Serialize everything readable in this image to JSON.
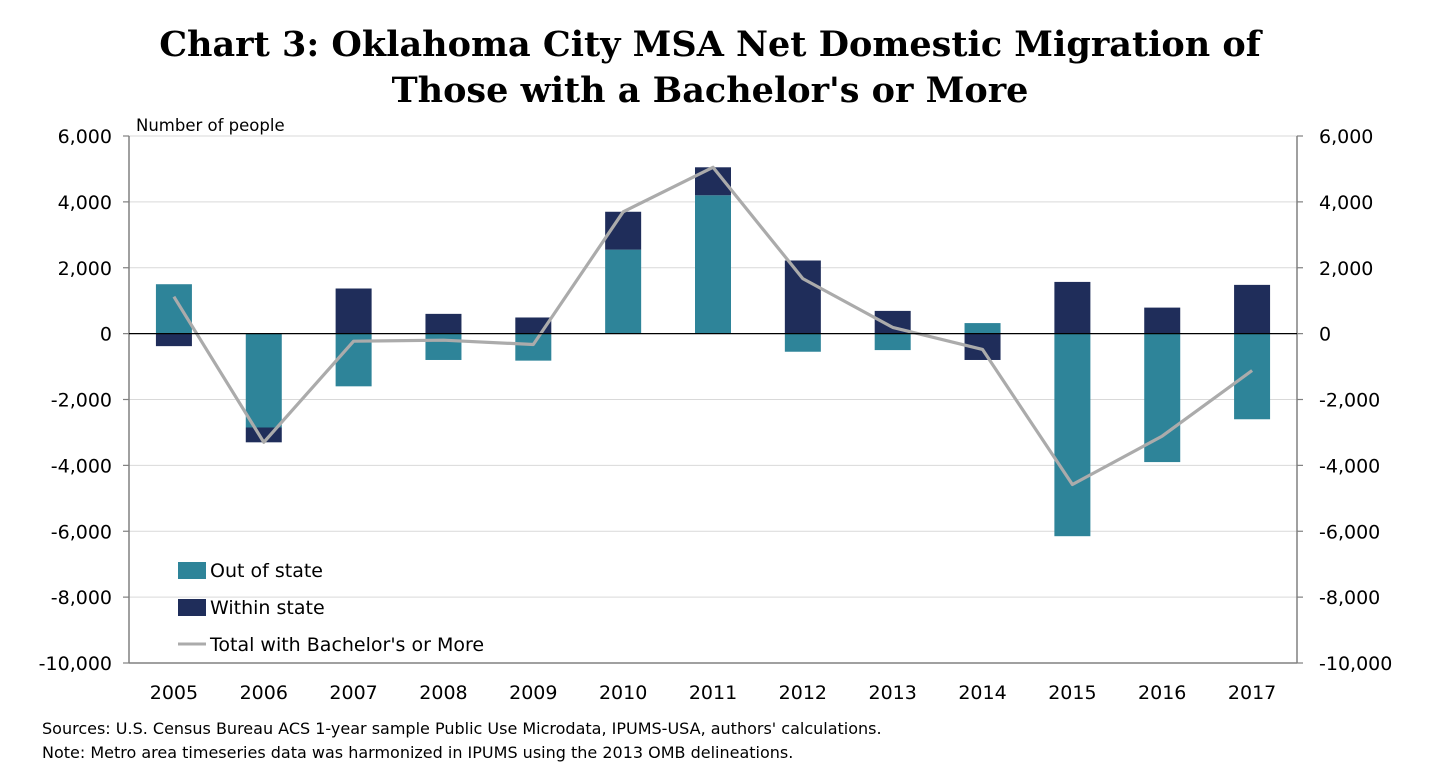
{
  "colors": {
    "out_of_state": "#2e8499",
    "within_state": "#1f2d5a",
    "total_line": "#ababab",
    "grid": "#d9d9d9",
    "axis": "#808080"
  },
  "chart_data": {
    "type": "bar",
    "stacked": true,
    "title_line1": "Chart 3: Oklahoma City MSA Net Domestic Migration of",
    "title_line2": "Those with a Bachelor's or More",
    "ylabel": "Number of people",
    "xlabel": "",
    "ylim": [
      -10000,
      6000
    ],
    "y_ticks": [
      6000,
      4000,
      2000,
      0,
      -2000,
      -4000,
      -6000,
      -8000,
      -10000
    ],
    "y_tick_labels": [
      "6,000",
      "4,000",
      "2,000",
      "0",
      "-2,000",
      "-4,000",
      "-6,000",
      "-8,000",
      "-10,000"
    ],
    "grid": true,
    "legend_position": "bottom-left",
    "categories": [
      "2005",
      "2006",
      "2007",
      "2008",
      "2009",
      "2010",
      "2011",
      "2012",
      "2013",
      "2014",
      "2015",
      "2016",
      "2017"
    ],
    "series": [
      {
        "name": "Out of state",
        "type": "bar",
        "values": [
          1500,
          -2850,
          -1600,
          -800,
          -820,
          2550,
          4200,
          -550,
          -500,
          320,
          -6150,
          -3900,
          -2600
        ]
      },
      {
        "name": "Within state",
        "type": "bar",
        "values": [
          -380,
          -450,
          1370,
          600,
          490,
          1150,
          850,
          2220,
          690,
          -800,
          1570,
          790,
          1480
        ]
      },
      {
        "name": "Total with Bachelor's or More",
        "type": "line",
        "values": [
          1120,
          -3300,
          -230,
          -200,
          -330,
          3700,
          5050,
          1670,
          190,
          -480,
          -4580,
          -3110,
          -1120
        ]
      }
    ]
  },
  "notes": {
    "sources": "Sources: U.S. Census Bureau ACS 1-year sample Public Use Microdata, IPUMS-USA, authors' calculations.",
    "note": "Note: Metro area timeseries data was harmonized in IPUMS using the 2013 OMB delineations."
  }
}
